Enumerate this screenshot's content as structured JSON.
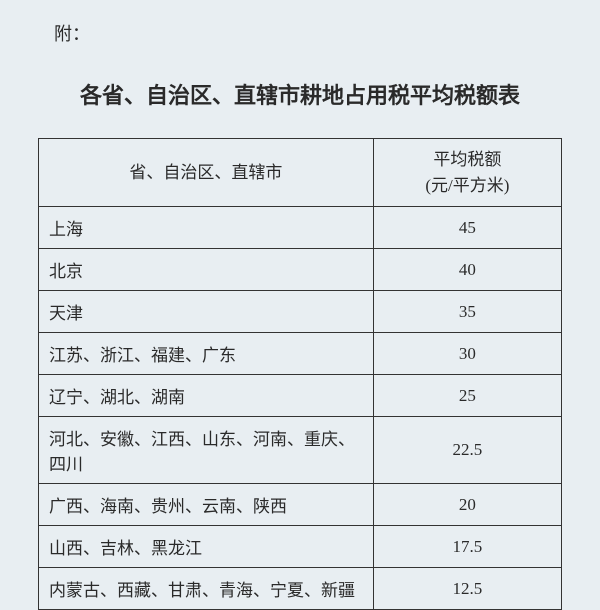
{
  "prefix": "附：",
  "title": "各省、自治区、直辖市耕地占用税平均税额表",
  "table": {
    "header_col1": "省、自治区、直辖市",
    "header_col2_line1": "平均税额",
    "header_col2_line2": "(元/平方米)",
    "rows": [
      {
        "region": "上海",
        "rate": "45"
      },
      {
        "region": "北京",
        "rate": "40"
      },
      {
        "region": "天津",
        "rate": "35"
      },
      {
        "region": "江苏、浙江、福建、广东",
        "rate": "30"
      },
      {
        "region": "辽宁、湖北、湖南",
        "rate": "25"
      },
      {
        "region": "河北、安徽、江西、山东、河南、重庆、四川",
        "rate": "22.5"
      },
      {
        "region": "广西、海南、贵州、云南、陕西",
        "rate": "20"
      },
      {
        "region": "山西、吉林、黑龙江",
        "rate": "17.5"
      },
      {
        "region": "内蒙古、西藏、甘肃、青海、宁夏、新疆",
        "rate": "12.5"
      }
    ]
  }
}
